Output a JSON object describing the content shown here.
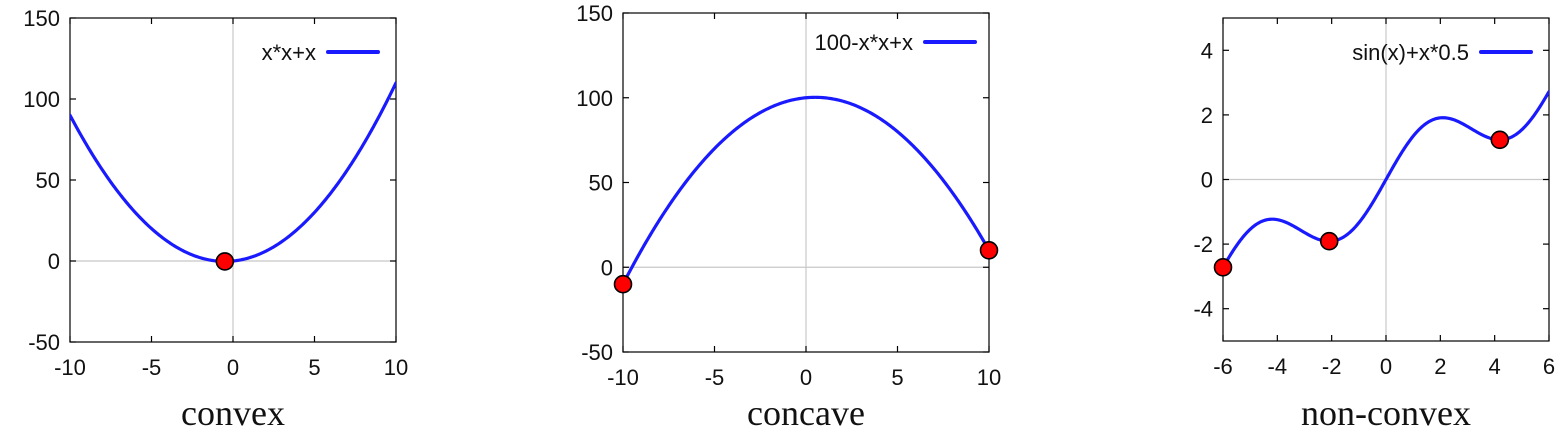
{
  "colors": {
    "curve": "#1a1aff",
    "marker": "#ff0000",
    "marker_edge": "#000000",
    "zero_lines": "#c8c8c8"
  },
  "chart_data": [
    {
      "type": "line",
      "title": "convex",
      "xlim": [
        -10,
        10
      ],
      "ylim": [
        -50,
        150
      ],
      "xticks": [
        -10,
        -5,
        0,
        5,
        10
      ],
      "yticks": [
        -50,
        0,
        50,
        100,
        150
      ],
      "grid": false,
      "legend_position": "top-right",
      "series": [
        {
          "name": "x*x+x",
          "function": "x*x+x",
          "x": [
            -10,
            -8,
            -6,
            -4,
            -2,
            -1,
            -0.5,
            0,
            1,
            2,
            4,
            6,
            8,
            10
          ],
          "y": [
            90,
            56,
            30,
            12,
            2,
            0,
            -0.25,
            0,
            2,
            6,
            20,
            42,
            72,
            110
          ]
        }
      ],
      "markers": [
        {
          "x": -0.5,
          "y": -0.25
        }
      ]
    },
    {
      "type": "line",
      "title": "concave",
      "xlim": [
        -10,
        10
      ],
      "ylim": [
        -50,
        150
      ],
      "xticks": [
        -10,
        -5,
        0,
        5,
        10
      ],
      "yticks": [
        -50,
        0,
        50,
        100,
        150
      ],
      "grid": false,
      "legend_position": "top-right",
      "series": [
        {
          "name": "100-x*x+x",
          "function": "100-x*x+x",
          "x": [
            -10,
            -8,
            -6,
            -4,
            -2,
            0,
            0.5,
            2,
            4,
            6,
            8,
            10
          ],
          "y": [
            -10,
            28,
            58,
            80,
            94,
            100,
            100.25,
            98,
            88,
            70,
            44,
            10
          ]
        }
      ],
      "markers": [
        {
          "x": -10,
          "y": -10
        },
        {
          "x": 10,
          "y": 10
        }
      ]
    },
    {
      "type": "line",
      "title": "non-convex",
      "xlim": [
        -6,
        6
      ],
      "ylim": [
        -5,
        5
      ],
      "xticks": [
        -6,
        -4,
        -2,
        0,
        2,
        4,
        6
      ],
      "yticks": [
        -4,
        -2,
        0,
        2,
        4
      ],
      "grid": false,
      "legend_position": "top-right",
      "series": [
        {
          "name": "sin(x)+x*0.5",
          "function": "sin(x)+x*0.5",
          "x": [
            -6,
            -4.19,
            -2.09,
            0,
            2.09,
            4.19,
            6
          ],
          "y": [
            -2.72,
            -1.23,
            -1.91,
            0,
            1.91,
            1.23,
            2.72
          ]
        }
      ],
      "markers": [
        {
          "x": -6,
          "y": -2.72
        },
        {
          "x": -2.09,
          "y": -1.91
        },
        {
          "x": 4.19,
          "y": 1.23
        }
      ]
    }
  ]
}
